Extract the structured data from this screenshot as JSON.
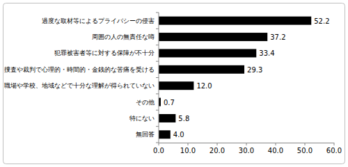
{
  "chart_data": {
    "type": "bar",
    "orientation": "horizontal",
    "categories": [
      "過度な取材等によるプライバシーの侵害",
      "周囲の人の無責任な噂",
      "犯罪被害者等に対する保障が不十分",
      "捜査や裁判で心理的・時間的・金銭的な苦痛を受ける",
      "職場や学校、地域などで十分な理解が得られていない",
      "その他",
      "特にない",
      "無回答"
    ],
    "values": [
      52.2,
      37.2,
      33.4,
      29.3,
      12.0,
      0.7,
      5.8,
      4.0
    ],
    "value_labels": [
      "52.2",
      "37.2",
      "33.4",
      "29.3",
      "12.0",
      "0.7",
      "5.8",
      "4.0"
    ],
    "color": "#000000",
    "xlim": [
      0,
      60
    ],
    "xticks": [
      {
        "value": 0,
        "label": "0.0"
      },
      {
        "value": 10,
        "label": "10.0"
      },
      {
        "value": 20,
        "label": "20.0"
      },
      {
        "value": 30,
        "label": "30.0"
      },
      {
        "value": 40,
        "label": "40.0"
      },
      {
        "value": 50,
        "label": "50.0"
      },
      {
        "value": 60,
        "label": "60.0"
      }
    ],
    "data_labels": true,
    "grid": false
  }
}
